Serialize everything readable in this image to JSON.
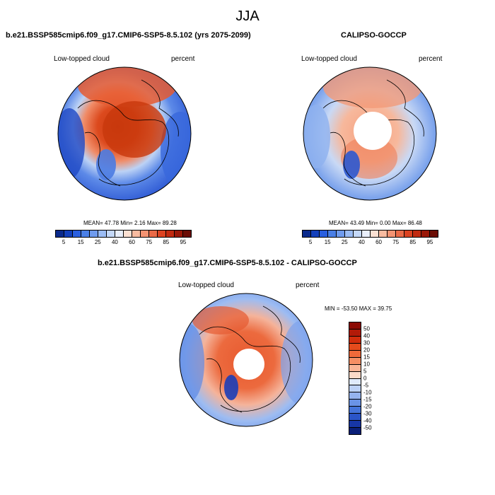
{
  "figure": {
    "title": "JJA",
    "variable_label": "Low-topped cloud",
    "units_label": "percent"
  },
  "panels": [
    {
      "id": "model",
      "title": "b.e21.BSSP585cmip6.f09_g17.CMIP6-SSP5-8.5.102 (yrs 2075-2099)",
      "stats": "MEAN=  47.78  Min=   2.16  Max=  89.28"
    },
    {
      "id": "obs",
      "title": "CALIPSO-GOCCP",
      "stats": "MEAN=  43.49  Min=   0.00  Max=  86.48"
    },
    {
      "id": "diff",
      "title": "b.e21.BSSP585cmip6.f09_g17.CMIP6-SSP5-8.5.102 - CALIPSO-GOCCP",
      "stats": "MIN = -53.50 MAX =  39.75"
    }
  ],
  "colorbar_abs": {
    "tick_labels": [
      "5",
      "15",
      "25",
      "40",
      "60",
      "75",
      "85",
      "95"
    ],
    "colors": [
      "#0a2a8c",
      "#1340bb",
      "#2a5fdf",
      "#4a7fe6",
      "#6f9bee",
      "#9bbcf4",
      "#c4d8f8",
      "#e8eefa",
      "#fbe0d2",
      "#f8bba0",
      "#f39372",
      "#ea6a47",
      "#dc4321",
      "#c12a10",
      "#9a1808",
      "#6b0d05"
    ]
  },
  "colorbar_diff": {
    "tick_labels": [
      "50",
      "40",
      "30",
      "20",
      "15",
      "10",
      "5",
      "0",
      "-5",
      "-10",
      "-15",
      "-20",
      "-30",
      "-40",
      "-50"
    ],
    "colors": [
      "#8c0a04",
      "#b21a08",
      "#d12d0c",
      "#e54b1c",
      "#f06a3a",
      "#f58f64",
      "#f9b596",
      "#fcdac8",
      "#e0ebfb",
      "#bdd2f6",
      "#95b4ef",
      "#6a93e6",
      "#4574da",
      "#2b55c8",
      "#1736a6",
      "#0a1f78"
    ]
  }
}
